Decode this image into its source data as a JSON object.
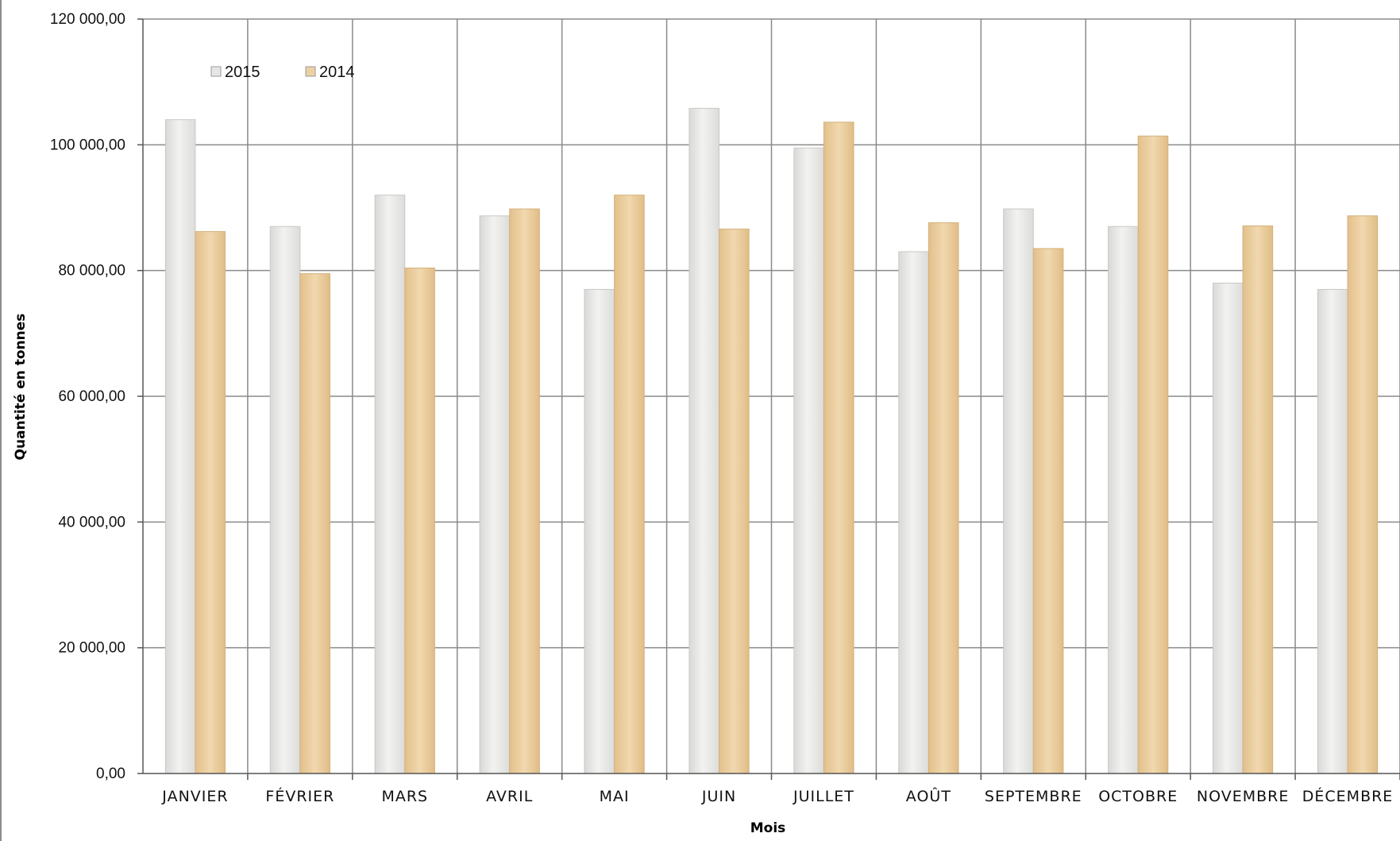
{
  "chart_data": {
    "type": "bar",
    "xlabel": "Mois",
    "ylabel": "Quantité en tonnes",
    "ylim": [
      0,
      120000
    ],
    "yticks": [
      0,
      20000,
      40000,
      60000,
      80000,
      100000,
      120000
    ],
    "ytick_labels": [
      "0,00",
      "20 000,00",
      "40 000,00",
      "60 000,00",
      "80 000,00",
      "100 000,00",
      "120 000,00"
    ],
    "categories": [
      "JANVIER",
      "FÉVRIER",
      "MARS",
      "AVRIL",
      "MAI",
      "JUIN",
      "JUILLET",
      "AOÛT",
      "SEPTEMBRE",
      "OCTOBRE",
      "NOVEMBRE",
      "DÉCEMBRE"
    ],
    "series": [
      {
        "name": "2015",
        "color": "#e6e6e4",
        "values": [
          104000,
          87000,
          92000,
          88700,
          77000,
          105800,
          99500,
          83000,
          89800,
          87000,
          78000,
          77000
        ]
      },
      {
        "name": "2014",
        "color": "#ecd1a4",
        "values": [
          86200,
          79500,
          80400,
          89800,
          92000,
          86600,
          103600,
          87600,
          83500,
          101400,
          87100,
          88700
        ]
      }
    ],
    "grid": true,
    "legend_position": "top-left"
  }
}
